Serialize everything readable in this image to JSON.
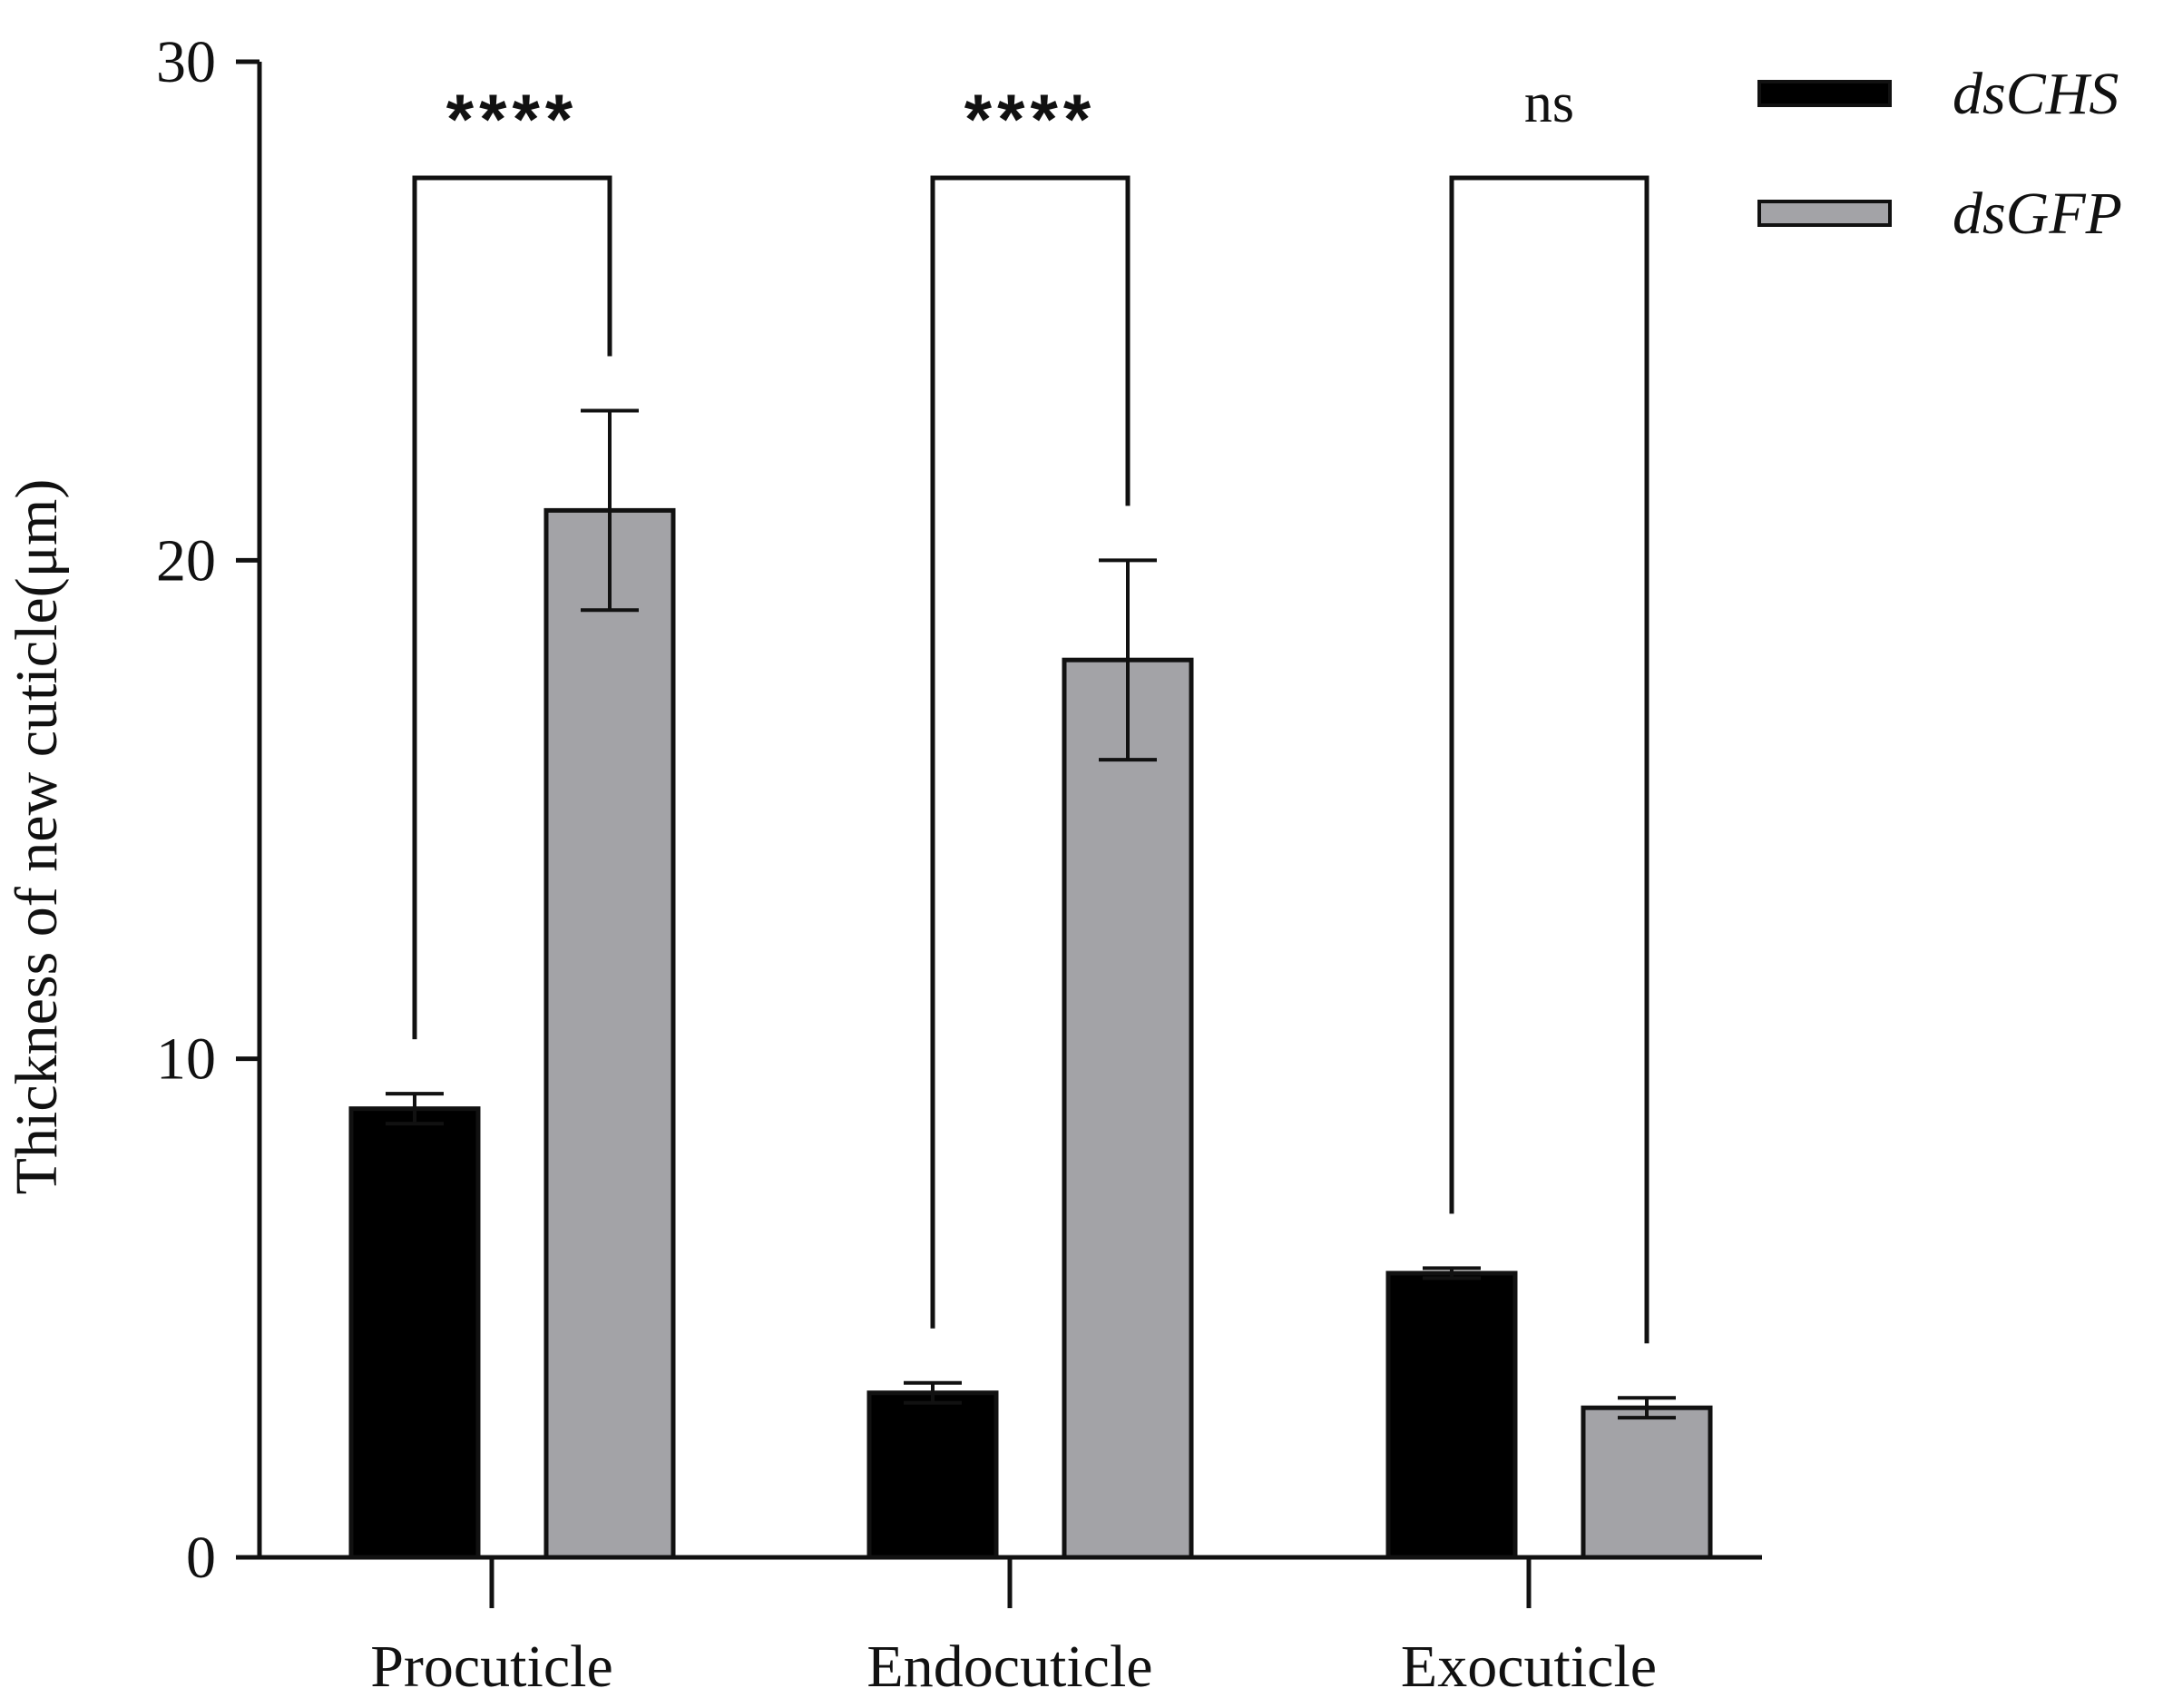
{
  "chart_data": {
    "type": "bar",
    "title": "",
    "xlabel": "",
    "ylabel": "Thickness of new cuticle(μm)",
    "ylim": [
      0,
      30
    ],
    "yticks": [
      0,
      10,
      20,
      30
    ],
    "grid": false,
    "legend_position": "top-right",
    "categories": [
      "Procuticle",
      "Endocuticle",
      "Exocuticle"
    ],
    "series": [
      {
        "name": "dsCHS",
        "color": "#000000",
        "values": [
          9.0,
          3.3,
          5.7
        ],
        "errors": [
          0.3,
          0.2,
          0.1
        ]
      },
      {
        "name": "dsGFP",
        "color": "#a3a3a7",
        "values": [
          21.0,
          18.0,
          3.0
        ],
        "errors": [
          2.0,
          2.0,
          0.2
        ]
      }
    ],
    "significance": [
      "****",
      "****",
      "ns"
    ]
  }
}
